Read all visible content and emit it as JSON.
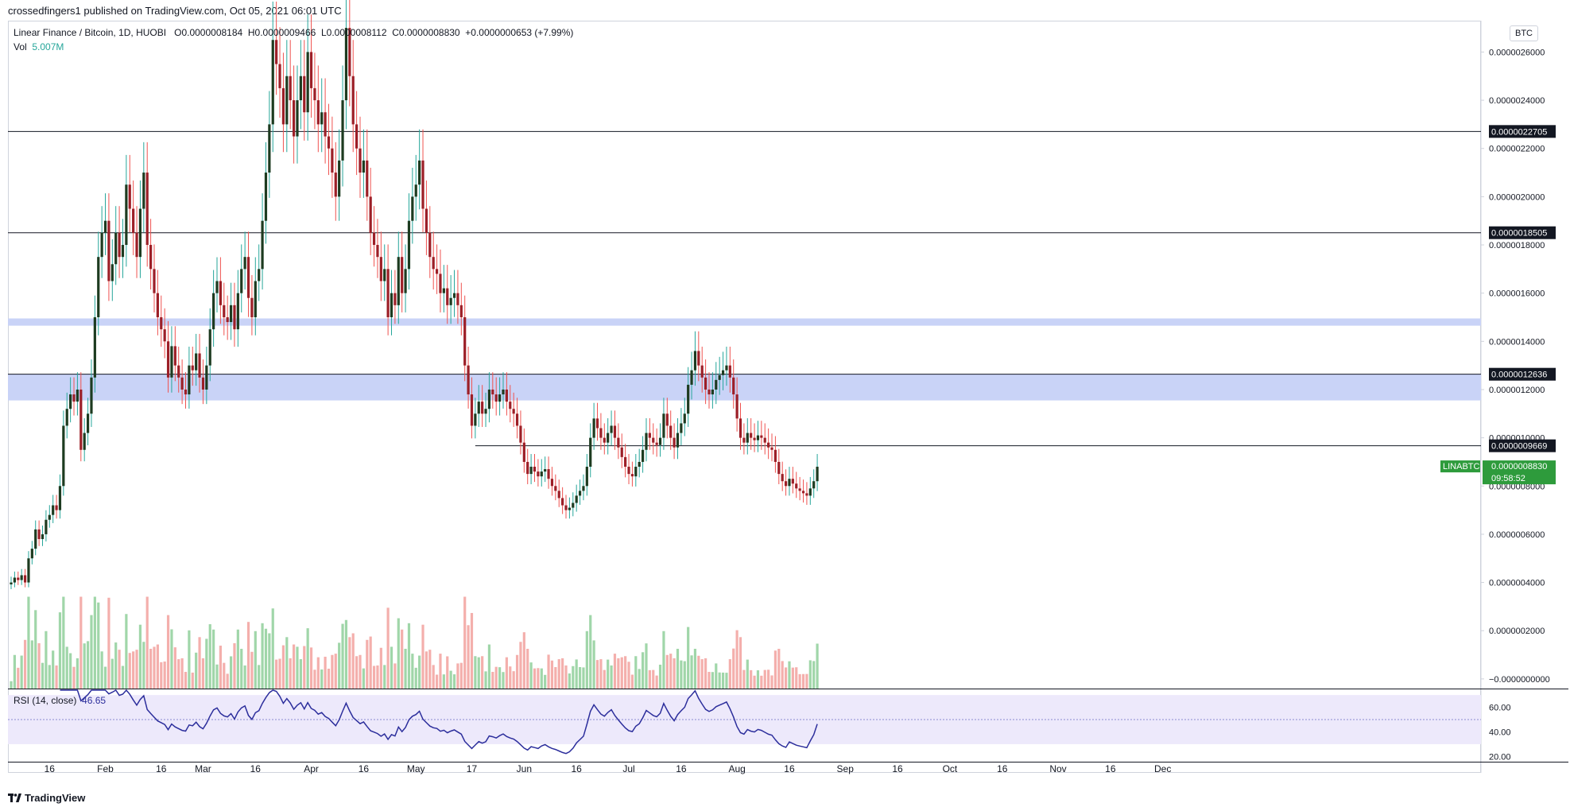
{
  "header": {
    "published_line": "crossedfingers1 published on TradingView.com, Oct 05, 2021 06:01 UTC"
  },
  "legend": {
    "symbol": "Linear Finance / Bitcoin, 1D, HUOBI",
    "open_label": "O",
    "open": "0.0000008184",
    "high_label": "H",
    "high": "0.0000009466",
    "low_label": "L",
    "low": "0.0000008112",
    "close_label": "C",
    "close": "0.0000008830",
    "change": "+0.0000000653 (+7.99%)",
    "vol_label": "Vol",
    "vol_value": "5.007M",
    "rsi_label": "RSI (14, close)",
    "rsi_value": "46.65"
  },
  "currency_button": "BTC",
  "footer": {
    "brand": "TradingView"
  },
  "colors": {
    "up": "#26a69a",
    "down": "#ef5350",
    "up_candle": "#1d3b20",
    "down_candle": "#9c1f27",
    "vol_up": "#8fcf9a",
    "vol_down": "#f2a19e",
    "zone": "#c9d3f7",
    "rsi_line": "#2c2e9c",
    "rsi_band": "#ede9fb",
    "price_tag": "#2e9b3c"
  },
  "chart_data": [
    {
      "type": "candlestick",
      "title": "Linear Finance / Bitcoin, 1D, HUOBI",
      "x_ticks": [
        "16",
        "Feb",
        "16",
        "Mar",
        "16",
        "Apr",
        "16",
        "May",
        "17",
        "Jun",
        "16",
        "Jul",
        "16",
        "Aug",
        "16",
        "Sep",
        "16",
        "Oct",
        "16",
        "Nov",
        "16",
        "Dec"
      ],
      "y_ticks": [
        "0.0000026000",
        "0.0000024000",
        "0.0000022000",
        "0.0000020000",
        "0.0000018000",
        "0.0000016000",
        "0.0000014000",
        "0.0000012000",
        "0.0000010000",
        "0.0000008000",
        "0.0000006000",
        "0.0000004000",
        "0.0000002000",
        "−0.0000000000"
      ],
      "ylim": [
        -4e-08,
        2.73e-06
      ],
      "horizontal_levels": [
        {
          "label": "0.0000022705",
          "value": 2.2705e-06
        },
        {
          "label": "0.0000018505",
          "value": 1.8505e-06
        },
        {
          "label": "0.0000012636",
          "value": 1.2636e-06
        },
        {
          "label": "0.0000009669",
          "value": 9.669e-07
        }
      ],
      "zones": [
        {
          "from": 1.465e-06,
          "to": 1.495e-06
        },
        {
          "from": 1.155e-06,
          "to": 1.2636e-06
        }
      ],
      "last_price": {
        "symbol": "LINABTC",
        "value": "0.0000008830",
        "countdown": "09:58:52"
      },
      "close_series": {
        "start": "2021-01-05",
        "interval": "1D",
        "values": [
          4e-07,
          4.2e-07,
          4.1e-07,
          4.3e-07,
          4e-07,
          5e-07,
          5.4e-07,
          6.2e-07,
          5.8e-07,
          6e-07,
          6.6e-07,
          6.8e-07,
          7.2e-07,
          7e-07,
          8e-07,
          1.05e-06,
          1.12e-06,
          1.18e-06,
          1.15e-06,
          1.2e-06,
          9.5e-07,
          1.02e-06,
          1.1e-06,
          1.25e-06,
          1.5e-06,
          1.75e-06,
          1.85e-06,
          1.9e-06,
          1.65e-06,
          1.72e-06,
          1.85e-06,
          1.75e-06,
          1.8e-06,
          2.05e-06,
          1.95e-06,
          1.85e-06,
          1.75e-06,
          1.95e-06,
          2.1e-06,
          1.8e-06,
          1.7e-06,
          1.6e-06,
          1.5e-06,
          1.45e-06,
          1.4e-06,
          1.25e-06,
          1.38e-06,
          1.3e-06,
          1.25e-06,
          1.2e-06,
          1.18e-06,
          1.3e-06,
          1.28e-06,
          1.35e-06,
          1.25e-06,
          1.2e-06,
          1.3e-06,
          1.45e-06,
          1.6e-06,
          1.65e-06,
          1.55e-06,
          1.5e-06,
          1.48e-06,
          1.55e-06,
          1.45e-06,
          1.6e-06,
          1.7e-06,
          1.75e-06,
          1.58e-06,
          1.5e-06,
          1.65e-06,
          1.7e-06,
          1.9e-06,
          2.1e-06,
          2.3e-06,
          2.65e-06,
          2.55e-06,
          2.45e-06,
          2.3e-06,
          2.5e-06,
          2.4e-06,
          2.25e-06,
          2.4e-06,
          2.5e-06,
          2.35e-06,
          2.6e-06,
          2.45e-06,
          2.4e-06,
          2.3e-06,
          2.35e-06,
          2.25e-06,
          2.2e-06,
          2.1e-06,
          2e-06,
          2.15e-06,
          2.4e-06,
          2.7e-06,
          2.5e-06,
          2.3e-06,
          2.2e-06,
          2.1e-06,
          2.15e-06,
          2e-06,
          1.85e-06,
          1.8e-06,
          1.75e-06,
          1.65e-06,
          1.7e-06,
          1.5e-06,
          1.6e-06,
          1.55e-06,
          1.75e-06,
          1.6e-06,
          1.7e-06,
          1.9e-06,
          2e-06,
          2.05e-06,
          2.15e-06,
          1.95e-06,
          1.85e-06,
          1.75e-06,
          1.7e-06,
          1.68e-06,
          1.6e-06,
          1.62e-06,
          1.55e-06,
          1.58e-06,
          1.6e-06,
          1.55e-06,
          1.5e-06,
          1.3e-06,
          1.18e-06,
          1.05e-06,
          1.1e-06,
          1.15e-06,
          1.1e-06,
          1.12e-06,
          1.2e-06,
          1.18e-06,
          1.15e-06,
          1.18e-06,
          1.2e-06,
          1.15e-06,
          1.12e-06,
          1.1e-06,
          1.05e-06,
          9.8e-07,
          9e-07,
          8.5e-07,
          8.8e-07,
          8.6e-07,
          8.4e-07,
          8.6e-07,
          8.7e-07,
          8.3e-07,
          8e-07,
          7.8e-07,
          7.5e-07,
          7.2e-07,
          7e-07,
          7.1e-07,
          7.3e-07,
          7.6e-07,
          7.8e-07,
          8e-07,
          8.8e-07,
          1e-06,
          1.08e-06,
          1.04e-06,
          1e-06,
          9.8e-07,
          1.02e-06,
          1.05e-06,
          1e-06,
          9.6e-07,
          9.2e-07,
          8.8e-07,
          8.5e-07,
          8.4e-07,
          8.8e-07,
          9e-07,
          9.5e-07,
          1.02e-06,
          1e-06,
          9.8e-07,
          9.7e-07,
          1e-06,
          1.1e-06,
          1.05e-06,
          1e-06,
          9.6e-07,
          1.02e-06,
          1.06e-06,
          1.1e-06,
          1.22e-06,
          1.28e-06,
          1.36e-06,
          1.3e-06,
          1.25e-06,
          1.2e-06,
          1.18e-06,
          1.2e-06,
          1.24e-06,
          1.26e-06,
          1.28e-06,
          1.3e-06,
          1.25e-06,
          1.18e-06,
          1.08e-06,
          1e-06,
          9.8e-07,
          1.02e-06,
          1e-06,
          9.9e-07,
          1.01e-06,
          1e-06,
          9.8e-07,
          9.6e-07,
          9.5e-07,
          9e-07,
          8.5e-07,
          8.2e-07,
          8e-07,
          8.3e-07,
          8.1e-07,
          7.9e-07,
          7.8e-07,
          7.7e-07,
          7.6e-07,
          7.9e-07,
          8.2e-07,
          8.8e-07
        ]
      },
      "volume": {
        "label": "Vol",
        "last": "5.007M"
      }
    },
    {
      "type": "line",
      "title": "RSI (14, close)",
      "ylim": [
        17,
        74
      ],
      "y_ticks": [
        "60.00",
        "40.00",
        "20.00"
      ],
      "band": [
        30,
        70
      ],
      "midline": 50,
      "last_value": "46.65"
    }
  ]
}
